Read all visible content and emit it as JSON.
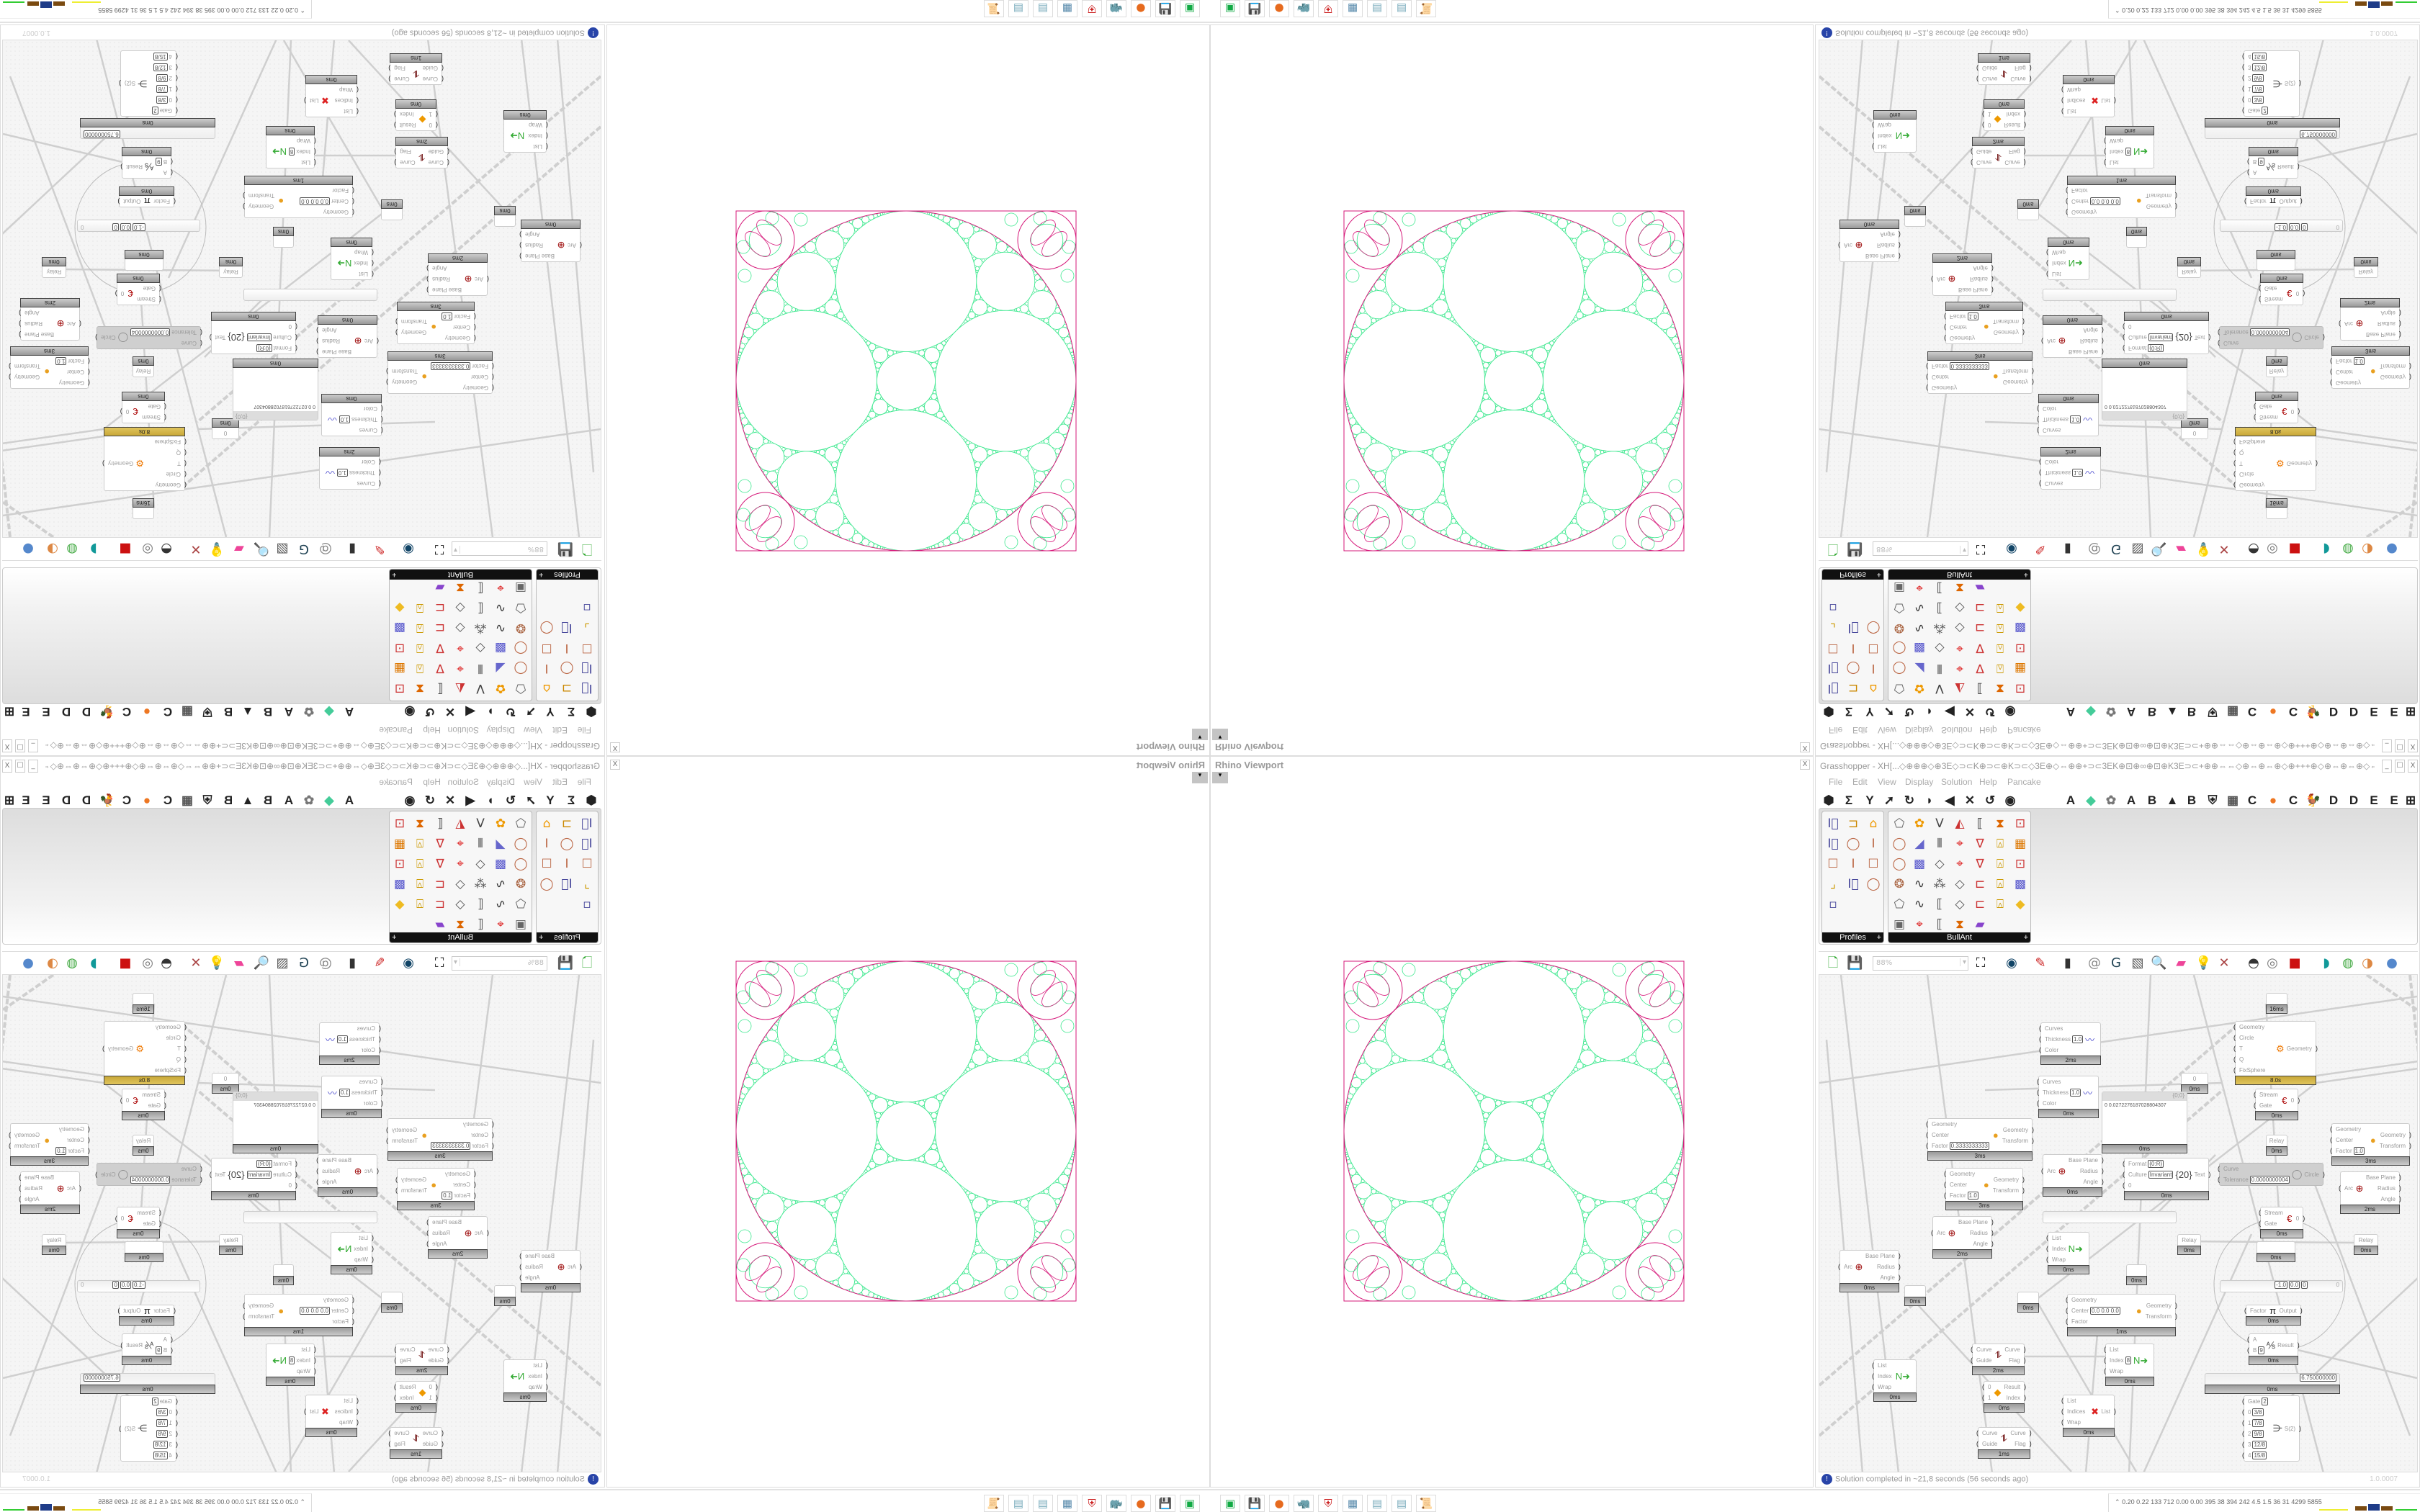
{
  "rhino_viewport": {
    "title": "Rhino Viewport",
    "close": "X",
    "dropdown": "▾"
  },
  "grasshopper": {
    "title": "Grasshopper - XH[...◇⊕⊕⊕◇⊕3E◇⊃⊂K⊕⊃⊂⊕K⊃⊂◇3E⊕◇⇔⊕⊕+⊃⊂3EK⊕⊡⊕∞⊕⊡⊕K3E⊃⊂+⊕⊕⇔⇔◇⊕⇔⊕⇔⊕◇⊕+++⊕◇⊕⇔⊕⇔⊕◇⇔⊕⊕+⊃⊂3EK⊕⊡⊕∞⊕...",
    "window_buttons": [
      "_",
      "☐",
      "X"
    ],
    "menu": [
      "File",
      "Edit",
      "View",
      "Display",
      "Solution",
      "Help",
      "Pancake"
    ],
    "tabs_left_icons": [
      "hexagon-params",
      "sigma-maths",
      "y-sets",
      "arrow-vector",
      "curve",
      "surface",
      "mesh",
      "intersect",
      "transform",
      "eye-display"
    ],
    "tabs_right": [
      "A",
      "◆",
      "✿",
      "A",
      "B",
      "▲",
      "B",
      "⛨",
      "▦",
      "C",
      "●",
      "C",
      "🐓",
      "D",
      "D",
      "E",
      "E",
      "⊞"
    ],
    "ribbon": {
      "profiles": {
        "label": "Profiles",
        "icons": [
          "i-beam-profile",
          "c-channel-profile",
          "hollow-section",
          "i-beam-profile",
          "ring-profile",
          "i-section",
          "box-section",
          "i-section",
          "box-section",
          "angle-profile",
          "i-beam-profile",
          "ring-profile",
          "points-profile"
        ]
      },
      "bullant": {
        "label": "BullAnt",
        "icons": [
          "block",
          "flower",
          "vertices",
          "triangle",
          "list-dims",
          "frame",
          "frame-red",
          "ring",
          "plane",
          "bars",
          "red-quad",
          "red-v",
          "lock",
          "frame-orange",
          "ring",
          "cube",
          "polyline",
          "red-quad",
          "red-v",
          "lock",
          "frame-red",
          "gear-ring",
          "curve",
          "star-points",
          "polyline",
          "frame-pts",
          "lock",
          "cube",
          "block",
          "curve",
          "list-dims",
          "polyline",
          "frame-pts",
          "lock",
          "diamond",
          "tablet",
          "red-quad",
          "list-dims",
          "frame",
          "rainbow"
        ]
      },
      "expand": "+"
    },
    "canvas_toolbar": {
      "zoom": "88%",
      "zoom_arrow": "▾",
      "icons": [
        "new-document",
        "save",
        "zoom-extents",
        "eye-preview",
        "sketch-brush",
        "bake",
        "email",
        "gha-export",
        "screenshot",
        "search",
        "package",
        "bulb",
        "twist",
        "sphere-gray",
        "ring-white",
        "red-box",
        "teal",
        "green-torus",
        "half-sphere",
        "blue-sphere"
      ]
    },
    "canvas": {
      "nodes": [
        {
          "time": "16ms"
        },
        {
          "inputs": [
            {
              "l": "Curves"
            },
            {
              "l": "Thickness",
              "v": "1.0"
            },
            {
              "l": "Color"
            }
          ],
          "icon": "〰",
          "time": "2ms"
        },
        {
          "inputs": [
            {
              "l": "Geometry"
            },
            {
              "l": "Circle"
            },
            {
              "l": "T"
            },
            {
              "l": "Q"
            },
            {
              "l": "FixSphere"
            }
          ],
          "outputs": [
            "Geometry"
          ],
          "icon": "⚙",
          "time": "8.0s",
          "gold": true
        },
        {
          "label": "0",
          "time": "0ms"
        },
        {
          "inputs": [
            {
              "l": "Curves"
            },
            {
              "l": "Thickness",
              "v": "1.0"
            },
            {
              "l": "Color"
            }
          ],
          "icon": "〰",
          "time": "0ms"
        },
        {
          "panel_header": "{0;0}",
          "panel_text": "0  0.0272276187028804307",
          "time": "0ms"
        },
        {
          "inputs": [
            {
              "l": "Stream"
            },
            {
              "l": "Gate"
            }
          ],
          "outputs": [
            "0"
          ],
          "icon": "€",
          "time": "0ms"
        },
        {
          "inputs": [
            {
              "l": "Geometry"
            },
            {
              "l": "Center"
            },
            {
              "l": "Factor",
              "v": "0.3333333333"
            }
          ],
          "outputs": [
            "Geometry",
            "Transform"
          ],
          "icon": "●",
          "time": "3ms"
        },
        {
          "label": "Relay",
          "time": "0ms"
        },
        {
          "inputs": [
            {
              "l": "Geometry"
            },
            {
              "l": "Center"
            },
            {
              "l": "Factor",
              "v": "1.0"
            }
          ],
          "outputs": [
            "Geometry",
            "Transform"
          ],
          "icon": "●",
          "time": "3ms"
        },
        {
          "inputs": [
            {
              "l": "Arc"
            }
          ],
          "outputs": [
            "Base Plane",
            "Radius",
            "Angle"
          ],
          "icon": "⊕",
          "time": "0ms"
        },
        {
          "inputs": [
            {
              "l": "Format",
              "v": "{0:R}"
            },
            {
              "l": "Culture",
              "v": "Invariant"
            },
            {
              "l": "0"
            }
          ],
          "outputs": [
            "Text"
          ],
          "icon": "{20}",
          "time": "0ms"
        },
        {
          "inputs": [
            {
              "l": "Curve"
            },
            {
              "l": "Tolerance",
              "v": "0.0000000004"
            }
          ],
          "outputs": [
            "Circle"
          ],
          "icon": "◯",
          "disabled": true
        },
        {
          "inputs": [
            {
              "l": "Geometry"
            },
            {
              "l": "Center"
            },
            {
              "l": "Factor",
              "v": "1.0"
            }
          ],
          "outputs": [
            "Geometry",
            "Transform"
          ],
          "icon": "●",
          "time": "3ms"
        },
        {
          "inputs": [
            {
              "l": "Arc"
            }
          ],
          "outputs": [
            "Base Plane",
            "Radius",
            "Angle"
          ],
          "icon": "⊕",
          "time": "2ms"
        },
        {
          "slider": true
        },
        {
          "inputs": [
            {
              "l": "Stream"
            },
            {
              "l": "Gate"
            }
          ],
          "outputs": [
            "0"
          ],
          "icon": "€",
          "time": "0ms"
        },
        {
          "inputs": [
            {
              "l": "Arc"
            }
          ],
          "outputs": [
            "Base Plane",
            "Radius",
            "Angle"
          ],
          "icon": "⊕",
          "time": "2ms"
        },
        {
          "inputs": [
            {
              "l": "Arc"
            }
          ],
          "outputs": [
            "Base Plane",
            "Radius",
            "Angle"
          ],
          "icon": "⊕",
          "time": "0ms"
        },
        {
          "time": "0ms"
        },
        {
          "inputs": [
            {
              "l": "List"
            },
            {
              "l": "Index"
            },
            {
              "l": "Wrap"
            }
          ],
          "icon": "N➜",
          "time": "0ms"
        },
        {
          "time": "0ms"
        },
        {
          "time": "0ms"
        },
        {
          "label": "Relay",
          "time": "0ms"
        },
        {
          "label": "Relay",
          "time": "0ms"
        },
        {
          "time": "0ms"
        },
        {
          "slider_values": [
            "-1.0",
            "0.0",
            "0"
          ],
          "slider_end": "0"
        },
        {
          "inputs": [
            {
              "l": "Geometry"
            },
            {
              "l": "Center",
              "v": "0.0 0.0 0.0"
            },
            {
              "l": "Factor"
            }
          ],
          "outputs": [
            "Geometry",
            "Transform"
          ],
          "icon": "●",
          "time": "1ms"
        },
        {
          "inputs": [
            {
              "l": "Factor"
            }
          ],
          "outputs": [
            "Output"
          ],
          "icon": "π",
          "time": "0ms"
        },
        {
          "inputs": [
            {
              "l": "A"
            },
            {
              "l": "B",
              "v": "9"
            }
          ],
          "outputs": [
            "Result"
          ],
          "icon": "⅍",
          "time": "0ms"
        },
        {
          "inputs": [
            {
              "l": "List"
            },
            {
              "l": "Index"
            },
            {
              "l": "Wrap"
            }
          ],
          "icon": "N➜",
          "time": "0ms"
        },
        {
          "inputs": [
            {
              "l": "Curve"
            },
            {
              "l": "Guide"
            }
          ],
          "outputs": [
            "Curve",
            "Flag"
          ],
          "icon": "⥮",
          "time": "2ms"
        },
        {
          "inputs": [
            {
              "l": "List"
            },
            {
              "l": "Index",
              "v": "8"
            },
            {
              "l": "Wrap"
            }
          ],
          "icon": "N➜",
          "time": "0ms"
        },
        {
          "inputs": [
            {
              "l": "0"
            },
            {
              "l": "1"
            }
          ],
          "outputs": [
            "Result",
            "Index"
          ],
          "icon": "◆",
          "time": "0ms"
        },
        {
          "slider_values": [
            "6.750000000"
          ],
          "time": "0ms"
        },
        {
          "inputs": [
            {
              "l": "List"
            },
            {
              "l": "Indices"
            },
            {
              "l": "Wrap"
            }
          ],
          "outputs": [
            "List"
          ],
          "icon": "✖",
          "time": "0ms"
        },
        {
          "inputs": [
            {
              "l": "Curve"
            },
            {
              "l": "Guide"
            }
          ],
          "outputs": [
            "Curve",
            "Flag"
          ],
          "icon": "⥮",
          "time": "1ms"
        },
        {
          "inputs": [
            {
              "l": "Gate",
              "v": "2"
            },
            {
              "l": "0",
              "v": "3/8"
            },
            {
              "l": "1",
              "v": "7/8"
            },
            {
              "l": "2",
              "v": "9/8"
            },
            {
              "l": "3",
              "v": "12/8"
            },
            {
              "l": "4",
              "v": "15/8"
            }
          ],
          "outputs": [
            "S(2)"
          ],
          "icon": "⋺"
        }
      ]
    },
    "status": {
      "icon": "info-icon",
      "glyph": "!",
      "message": "Solution completed in ~21,8 seconds (56 seconds ago)",
      "version": "1.0.0007"
    }
  },
  "taskbar": {
    "icons": [
      {
        "name": "disk-monitor",
        "glyph": "▣",
        "color": "#1a4"
      },
      {
        "name": "floppy-64",
        "glyph": "💾",
        "color": "#226"
      },
      {
        "name": "firefox",
        "glyph": "●",
        "color": "#e66a1e"
      },
      {
        "name": "rhino",
        "glyph": "🦏",
        "color": "#000"
      },
      {
        "name": "antivirus-shield",
        "glyph": "⛨",
        "color": "#c22"
      },
      {
        "name": "calculator",
        "glyph": "▦",
        "color": "#58a"
      },
      {
        "name": "notepad",
        "glyph": "▤",
        "color": "#7ab"
      },
      {
        "name": "notepad",
        "glyph": "▤",
        "color": "#7ab"
      },
      {
        "name": "scroll",
        "glyph": "📜",
        "color": "#667"
      }
    ],
    "stats_arrow": "⌃",
    "stats": "0.20 0.22  133  712  0.00 0.00  395   38   394  242   4.5   1.5   36   31  4299 5855",
    "colors": {
      "brown": "#7a4a10",
      "blue": "#1f3c88",
      "green": "#3c3",
      "yellow": "#ee3"
    }
  },
  "colors": {
    "packing_green": "#3ee88f",
    "packing_magenta": "#d6187a",
    "gold_footer": "#c8a838"
  }
}
